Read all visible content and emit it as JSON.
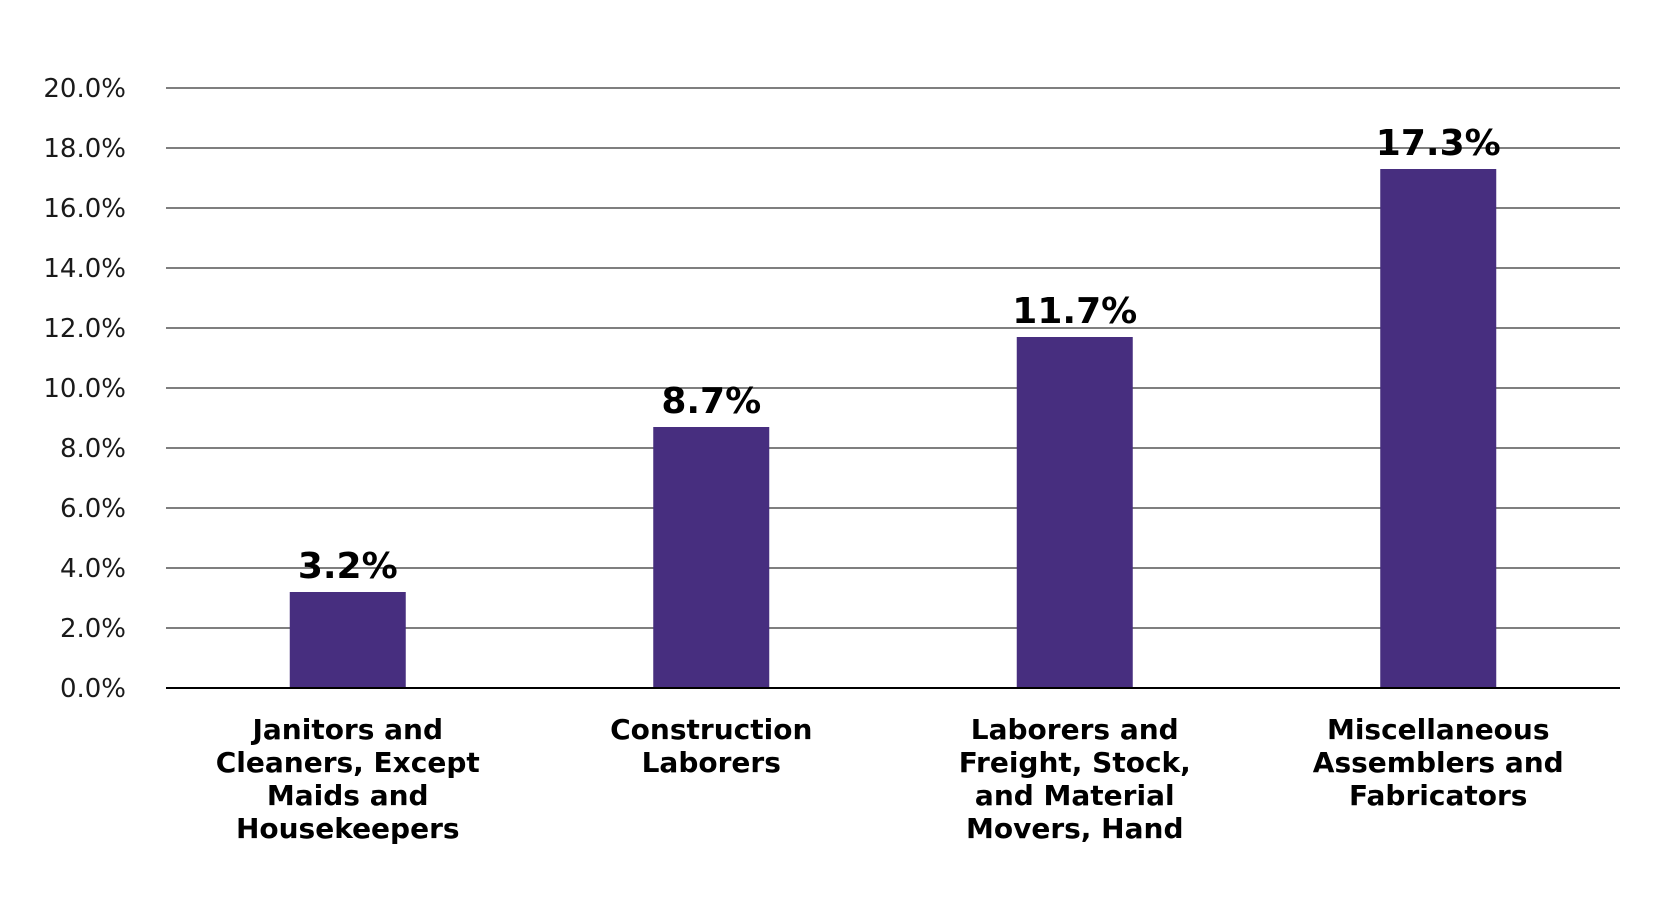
{
  "chart_data": {
    "type": "bar",
    "title": "",
    "xlabel": "",
    "ylabel": "",
    "categories": [
      "Janitors and Cleaners, Except Maids and Housekeepers",
      "Construction Laborers",
      "Laborers and Freight, Stock, and Material Movers, Hand",
      "Miscellaneous Assemblers and Fabricators"
    ],
    "values": [
      3.2,
      8.7,
      11.7,
      17.3
    ],
    "data_labels": [
      "3.2%",
      "8.7%",
      "11.7%",
      "17.3%"
    ],
    "ylim": [
      0,
      20
    ],
    "yticks": [
      0,
      2,
      4,
      6,
      8,
      10,
      12,
      14,
      16,
      18,
      20
    ],
    "ytick_labels": [
      "0.0%",
      "2.0%",
      "4.0%",
      "6.0%",
      "8.0%",
      "10.0%",
      "12.0%",
      "14.0%",
      "16.0%",
      "18.0%",
      "20.0%"
    ],
    "grid": true,
    "legend": "none",
    "bar_color": "#472e7f",
    "grid_color": "#333333"
  }
}
